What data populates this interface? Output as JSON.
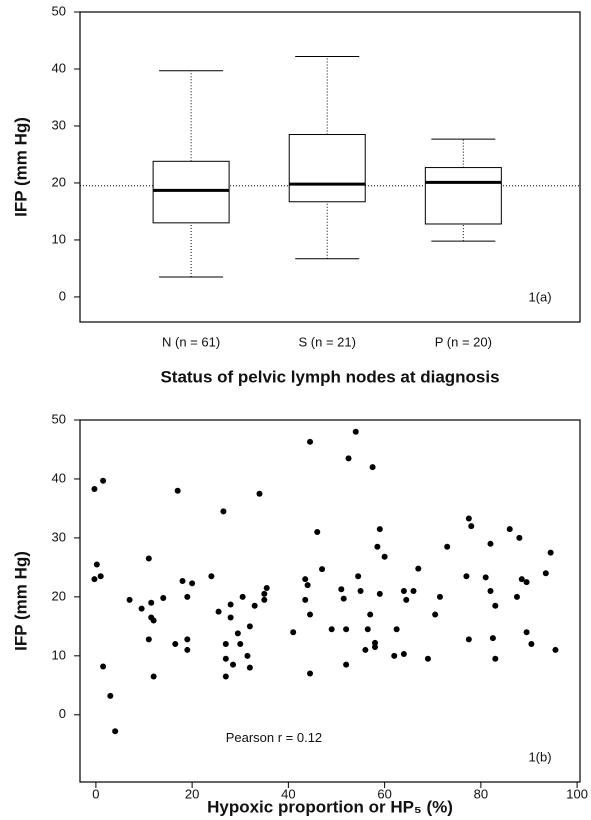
{
  "chart_data": [
    {
      "type": "box",
      "ylabel": "IFP (mm Hg)",
      "xlabel": "Status of pelvic lymph nodes at diagnosis",
      "annotation": "1(a)",
      "categories": [
        "N (n = 61)",
        "S (n = 21)",
        "P (n = 20)"
      ],
      "whislo": [
        3.5,
        6.7,
        9.8
      ],
      "q1": [
        13,
        16.7,
        12.8
      ],
      "med": [
        18.7,
        19.8,
        20.1
      ],
      "q3": [
        23.8,
        28.5,
        22.7
      ],
      "whishi": [
        39.7,
        42.2,
        27.7
      ],
      "reference_line": 19.5,
      "ylim": [
        -4.4,
        50
      ],
      "yticks": [
        0,
        10,
        20,
        30,
        40,
        50
      ]
    },
    {
      "type": "scatter",
      "ylabel": "IFP (mm Hg)",
      "xlabel": "Hypoxic proportion or HP₅ (%)",
      "annotation": "1(b)",
      "stat_label": "Pearson  r = 0.12",
      "x": [
        -0.3,
        1.5,
        0.2,
        -0.3,
        1,
        1.5,
        3,
        4,
        7,
        9.5,
        11,
        11,
        11.5,
        11.5,
        12,
        12,
        14,
        16.5,
        17,
        18,
        19,
        19,
        19,
        20,
        24,
        25.5,
        26.5,
        27,
        27,
        27,
        28,
        28,
        28.5,
        29.5,
        30,
        30.5,
        31.5,
        32,
        32,
        33,
        34,
        35,
        35,
        35.5,
        41,
        43.5,
        43.5,
        44,
        44.5,
        44.5,
        44.5,
        46,
        47,
        49,
        51,
        51.5,
        52,
        52,
        52.5,
        54,
        54.5,
        55,
        56,
        56.5,
        57,
        57.5,
        58,
        58,
        58.5,
        59,
        59,
        60,
        62,
        62.5,
        64,
        64,
        64.5,
        66,
        67,
        69,
        70.5,
        71.5,
        73,
        77,
        77.5,
        77.5,
        78,
        81,
        82,
        82,
        82.5,
        83,
        83,
        86,
        87.5,
        88,
        88.5,
        89.5,
        89.5,
        90.5,
        93.5,
        94.5,
        95.5
      ],
      "y": [
        38.3,
        39.7,
        25.5,
        23,
        23.5,
        8.2,
        3.2,
        -2.8,
        19.5,
        18,
        12.8,
        26.5,
        19,
        16.5,
        16,
        6.5,
        19.8,
        12,
        38,
        22.7,
        20,
        12.8,
        11,
        22.3,
        23.5,
        17.5,
        34.5,
        12,
        9.5,
        6.5,
        18.7,
        16.5,
        8.5,
        13.8,
        12,
        20,
        10,
        8,
        15,
        18.5,
        37.5,
        20.5,
        19.5,
        21.5,
        14,
        23,
        19.5,
        22,
        17,
        7,
        46.3,
        31,
        24.7,
        14.5,
        21.3,
        19.7,
        14.5,
        8.5,
        43.5,
        48,
        23.5,
        21,
        11,
        14.5,
        17,
        42,
        12.2,
        11.5,
        28.5,
        31.5,
        20.5,
        26.8,
        10,
        14.5,
        10.3,
        21,
        19.5,
        21,
        24.8,
        9.5,
        17,
        20,
        28.5,
        23.5,
        12.8,
        33.3,
        32,
        23.3,
        29,
        21,
        13,
        9.5,
        18.5,
        31.5,
        20,
        30,
        23,
        14,
        22.5,
        12,
        24,
        27.5,
        11
      ],
      "color": "#000000",
      "xlim": [
        -3.3,
        100.6
      ],
      "xticks": [
        0,
        20,
        40,
        60,
        80,
        100
      ],
      "ylim": [
        -11.4,
        50
      ],
      "yticks": [
        0,
        10,
        20,
        30,
        40,
        50
      ]
    }
  ]
}
